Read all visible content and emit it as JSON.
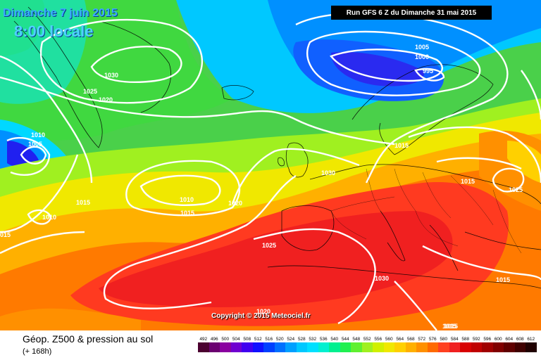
{
  "header": {
    "run_text": "Run GFS 6 Z du Dimanche 31 mai 2015",
    "date_text": "Dimanche 7 juin 2015",
    "time_text": "8:00 locale"
  },
  "copyright": "Copyright © 2015 Meteociel.fr",
  "legend": {
    "title": "Géop. Z500 & pression au sol",
    "subtitle": "(+ 168h)",
    "scale_labels": [
      "492",
      "496",
      "500",
      "504",
      "508",
      "512",
      "516",
      "520",
      "524",
      "528",
      "532",
      "536",
      "540",
      "544",
      "548",
      "552",
      "556",
      "560",
      "564",
      "568",
      "572",
      "576",
      "580",
      "584",
      "588",
      "592",
      "596",
      "600",
      "604",
      "608",
      "612"
    ],
    "scale_colors": [
      "#4b0030",
      "#6b0070",
      "#8a00a0",
      "#7000d0",
      "#4000f0",
      "#1010ff",
      "#0040ff",
      "#0070ff",
      "#00a0ff",
      "#00c8ff",
      "#00e0ff",
      "#00f0d0",
      "#00f090",
      "#20f050",
      "#60f030",
      "#a0f020",
      "#d0f000",
      "#f0e800",
      "#ffd000",
      "#ffb000",
      "#ff9000",
      "#ff6a00",
      "#ff4020",
      "#f02020",
      "#d80000",
      "#c00000",
      "#a00000",
      "#800000",
      "#600000",
      "#400000",
      "#200000"
    ]
  },
  "isobar_labels": [
    {
      "text": "1030"
    },
    {
      "text": "1025"
    },
    {
      "text": "1020"
    },
    {
      "text": "1010"
    },
    {
      "text": "1005"
    },
    {
      "text": "1015"
    },
    {
      "text": "1010"
    },
    {
      "text": "015"
    },
    {
      "text": "1010"
    },
    {
      "text": "1015"
    },
    {
      "text": "1020"
    },
    {
      "text": "1030"
    },
    {
      "text": "1025"
    },
    {
      "text": "1015"
    },
    {
      "text": "1005"
    },
    {
      "text": "1000"
    },
    {
      "text": "995"
    },
    {
      "text": "1015"
    },
    {
      "text": "1025"
    },
    {
      "text": "1030"
    },
    {
      "text": "1020"
    },
    {
      "text": "1015"
    },
    {
      "text": "1015"
    },
    {
      "text": "1015"
    }
  ]
}
